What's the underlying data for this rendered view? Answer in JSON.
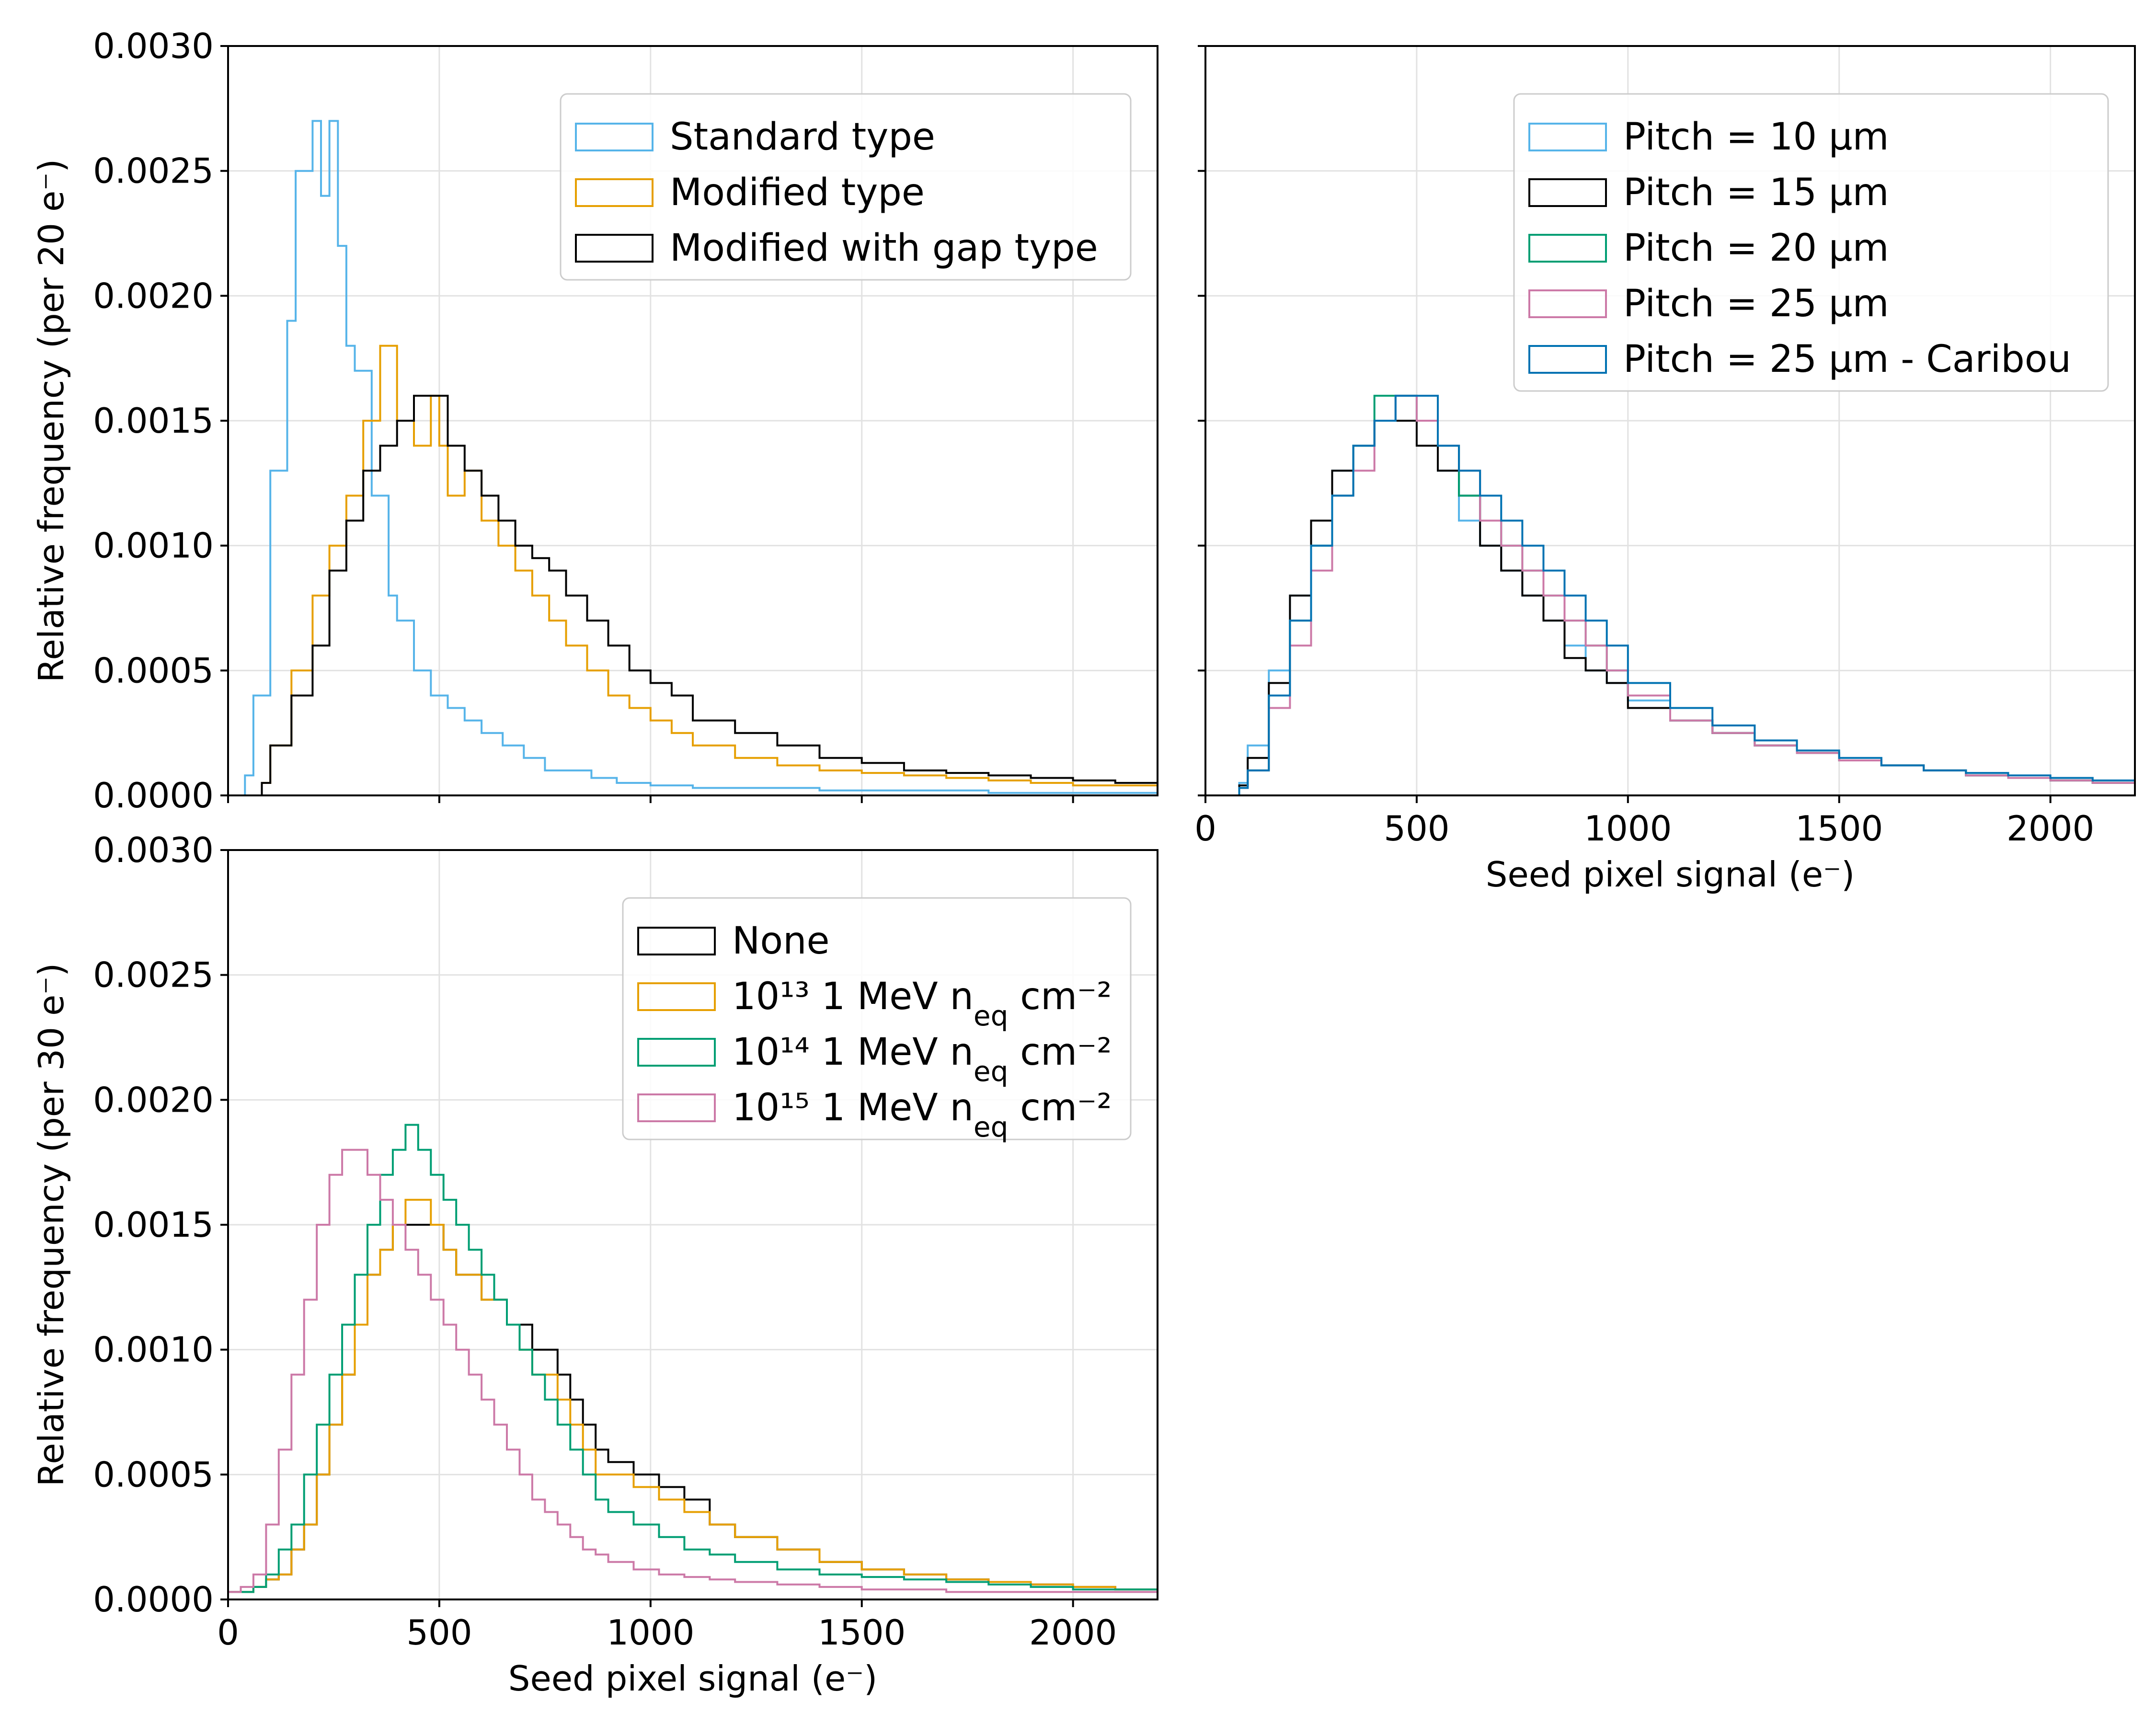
{
  "colors": {
    "sky": "#56B4E9",
    "orange": "#E69F00",
    "black": "#000000",
    "green": "#009E73",
    "pink": "#CC79A7",
    "blue": "#0072B2"
  },
  "chart_data": [
    {
      "type": "line",
      "style": "step-histogram",
      "title": "",
      "xlabel": "",
      "ylabel": "Relative frequency (per 20 e⁻)",
      "xlim": [
        0,
        2200
      ],
      "ylim": [
        0,
        0.003
      ],
      "xticks": [],
      "yticks": [
        "0.0000",
        "0.0005",
        "0.0010",
        "0.0015",
        "0.0020",
        "0.0025",
        "0.0030"
      ],
      "grid": true,
      "legend_placement": "upper right",
      "bin_width": 20,
      "series": [
        {
          "name": "Standard type",
          "color": "sky",
          "x": [
            60,
            100,
            140,
            160,
            200,
            220,
            240,
            260,
            280,
            300,
            320,
            340,
            380,
            400,
            440,
            480,
            520,
            560,
            600,
            650,
            700,
            750,
            800,
            860,
            920,
            1000,
            1100,
            1200,
            1400,
            1600,
            1800,
            2000,
            2200
          ],
          "y": [
            8e-05,
            0.0004,
            0.0013,
            0.0019,
            0.0025,
            0.0027,
            0.0024,
            0.0027,
            0.0022,
            0.0018,
            0.0017,
            0.0017,
            0.0012,
            0.0008,
            0.0007,
            0.0005,
            0.0004,
            0.00035,
            0.0003,
            0.00025,
            0.0002,
            0.00015,
            0.0001,
            0.0001,
            7e-05,
            5e-05,
            4e-05,
            3e-05,
            3e-05,
            2e-05,
            2e-05,
            1e-05,
            1e-05
          ]
        },
        {
          "name": "Modified type",
          "color": "orange",
          "x": [
            100,
            150,
            200,
            240,
            280,
            320,
            360,
            400,
            440,
            480,
            500,
            520,
            560,
            600,
            640,
            680,
            720,
            760,
            800,
            850,
            900,
            950,
            1000,
            1050,
            1100,
            1200,
            1300,
            1400,
            1500,
            1600,
            1700,
            1800,
            1900,
            2000,
            2100,
            2200
          ],
          "y": [
            5e-05,
            0.0002,
            0.0005,
            0.0008,
            0.001,
            0.0012,
            0.0015,
            0.0018,
            0.0015,
            0.0014,
            0.0016,
            0.0014,
            0.0012,
            0.0013,
            0.0011,
            0.001,
            0.0009,
            0.0008,
            0.0007,
            0.0006,
            0.0005,
            0.0004,
            0.00035,
            0.0003,
            0.00025,
            0.0002,
            0.00015,
            0.00012,
            0.0001,
            9e-05,
            8e-05,
            7e-05,
            6e-05,
            5e-05,
            4e-05,
            4e-05
          ]
        },
        {
          "name": "Modified with gap type",
          "color": "black",
          "x": [
            100,
            150,
            200,
            240,
            280,
            320,
            360,
            400,
            440,
            480,
            520,
            560,
            600,
            640,
            680,
            720,
            760,
            800,
            850,
            900,
            950,
            1000,
            1050,
            1100,
            1200,
            1300,
            1400,
            1500,
            1600,
            1700,
            1800,
            1900,
            2000,
            2100,
            2200
          ],
          "y": [
            5e-05,
            0.0002,
            0.0004,
            0.0006,
            0.0009,
            0.0011,
            0.0013,
            0.0014,
            0.0015,
            0.0016,
            0.0016,
            0.0014,
            0.0013,
            0.0012,
            0.0011,
            0.001,
            0.00095,
            0.0009,
            0.0008,
            0.0007,
            0.0006,
            0.0005,
            0.00045,
            0.0004,
            0.0003,
            0.00025,
            0.0002,
            0.00015,
            0.00013,
            0.0001,
            9e-05,
            8e-05,
            7e-05,
            6e-05,
            5e-05
          ]
        }
      ]
    },
    {
      "type": "line",
      "style": "step-histogram",
      "title": "",
      "xlabel": "Seed pixel signal (e⁻)",
      "ylabel": "",
      "xlim": [
        0,
        2200
      ],
      "ylim": [
        0,
        0.003
      ],
      "xticks": [
        "0",
        "500",
        "1000",
        "1500",
        "2000"
      ],
      "yticks": [],
      "grid": true,
      "legend_placement": "upper right",
      "bin_width": 20,
      "series": [
        {
          "name": "Pitch = 10 μm",
          "color": "sky",
          "x": [
            100,
            150,
            200,
            250,
            300,
            350,
            400,
            450,
            500,
            550,
            600,
            650,
            700,
            750,
            800,
            850,
            900,
            950,
            1000,
            1100,
            1200,
            1300,
            1400,
            1500,
            1600,
            1700,
            1800,
            1900,
            2000,
            2100,
            2200
          ],
          "y": [
            5e-05,
            0.0002,
            0.0005,
            0.0008,
            0.0011,
            0.0013,
            0.0014,
            0.0015,
            0.0016,
            0.0015,
            0.0013,
            0.0011,
            0.001,
            0.0009,
            0.0008,
            0.0007,
            0.0006,
            0.0005,
            0.00045,
            0.00038,
            0.0003,
            0.00025,
            0.0002,
            0.00017,
            0.00014,
            0.00012,
            0.0001,
            8e-05,
            7e-05,
            6e-05,
            5e-05
          ]
        },
        {
          "name": "Pitch = 15 μm",
          "color": "black",
          "x": [
            100,
            150,
            200,
            250,
            300,
            350,
            400,
            450,
            500,
            550,
            600,
            650,
            700,
            750,
            800,
            850,
            900,
            950,
            1000,
            1100,
            1200,
            1300,
            1400,
            1500,
            1600,
            1700,
            1800,
            1900,
            2000,
            2100,
            2200
          ],
          "y": [
            4e-05,
            0.00015,
            0.00045,
            0.0008,
            0.0011,
            0.0013,
            0.0014,
            0.0015,
            0.0015,
            0.0014,
            0.0013,
            0.0012,
            0.001,
            0.0009,
            0.0008,
            0.0007,
            0.00055,
            0.0005,
            0.00045,
            0.00035,
            0.0003,
            0.00025,
            0.0002,
            0.00017,
            0.00014,
            0.00012,
            0.0001,
            8e-05,
            7e-05,
            6e-05,
            5e-05
          ]
        },
        {
          "name": "Pitch = 20 μm",
          "color": "green",
          "x": [
            100,
            150,
            200,
            250,
            300,
            350,
            400,
            450,
            500,
            550,
            600,
            650,
            700,
            750,
            800,
            850,
            900,
            950,
            1000,
            1100,
            1200,
            1300,
            1400,
            1500,
            1600,
            1700,
            1800,
            1900,
            2000,
            2100,
            2200
          ],
          "y": [
            3e-05,
            0.0001,
            0.0004,
            0.0007,
            0.001,
            0.0012,
            0.0014,
            0.0016,
            0.0016,
            0.0015,
            0.0014,
            0.0012,
            0.0011,
            0.001,
            0.0009,
            0.0008,
            0.0007,
            0.0006,
            0.0005,
            0.0004,
            0.0003,
            0.00025,
            0.0002,
            0.00017,
            0.00014,
            0.00012,
            0.0001,
            8e-05,
            7e-05,
            6e-05,
            5e-05
          ]
        },
        {
          "name": "Pitch = 25 μm",
          "color": "pink",
          "x": [
            100,
            150,
            200,
            250,
            300,
            350,
            400,
            450,
            500,
            550,
            600,
            650,
            700,
            750,
            800,
            850,
            900,
            950,
            1000,
            1100,
            1200,
            1300,
            1400,
            1500,
            1600,
            1700,
            1800,
            1900,
            2000,
            2100,
            2200
          ],
          "y": [
            3e-05,
            0.0001,
            0.00035,
            0.0006,
            0.0009,
            0.0012,
            0.0013,
            0.0015,
            0.0016,
            0.0015,
            0.0014,
            0.0013,
            0.0011,
            0.001,
            0.0009,
            0.0008,
            0.0007,
            0.0006,
            0.0005,
            0.0004,
            0.0003,
            0.00025,
            0.0002,
            0.00017,
            0.00014,
            0.00012,
            0.0001,
            8e-05,
            7e-05,
            6e-05,
            5e-05
          ]
        },
        {
          "name": "Pitch = 25 μm - Caribou",
          "color": "blue",
          "x": [
            100,
            150,
            200,
            250,
            300,
            350,
            400,
            450,
            500,
            550,
            600,
            650,
            700,
            750,
            800,
            850,
            900,
            950,
            1000,
            1100,
            1200,
            1300,
            1400,
            1500,
            1600,
            1700,
            1800,
            1900,
            2000,
            2100,
            2200
          ],
          "y": [
            3e-05,
            0.0001,
            0.0004,
            0.0007,
            0.001,
            0.0012,
            0.0014,
            0.0015,
            0.0016,
            0.0016,
            0.0014,
            0.0013,
            0.0012,
            0.0011,
            0.001,
            0.0009,
            0.0008,
            0.0007,
            0.0006,
            0.00045,
            0.00035,
            0.00028,
            0.00022,
            0.00018,
            0.00015,
            0.00012,
            0.0001,
            9e-05,
            8e-05,
            7e-05,
            6e-05
          ]
        }
      ]
    },
    {
      "type": "line",
      "style": "step-histogram",
      "title": "",
      "xlabel": "Seed pixel signal (e⁻)",
      "ylabel": "Relative frequency (per 30 e⁻)",
      "xlim": [
        0,
        2200
      ],
      "ylim": [
        0,
        0.003
      ],
      "xticks": [
        "0",
        "500",
        "1000",
        "1500",
        "2000"
      ],
      "yticks": [
        "0.0000",
        "0.0005",
        "0.0010",
        "0.0015",
        "0.0020",
        "0.0025",
        "0.0030"
      ],
      "grid": true,
      "legend_placement": "upper right",
      "bin_width": 30,
      "series": [
        {
          "name": "None",
          "color": "black",
          "x": [
            30,
            60,
            90,
            120,
            150,
            180,
            210,
            240,
            270,
            300,
            330,
            360,
            390,
            420,
            450,
            480,
            510,
            540,
            570,
            600,
            630,
            660,
            690,
            720,
            750,
            780,
            810,
            840,
            870,
            900,
            960,
            1020,
            1080,
            1140,
            1200,
            1300,
            1400,
            1500,
            1600,
            1700,
            1800,
            1900,
            2000,
            2100,
            2200
          ],
          "y": [
            3e-05,
            3e-05,
            5e-05,
            8e-05,
            0.0001,
            0.0002,
            0.0003,
            0.0005,
            0.0007,
            0.0009,
            0.0011,
            0.0013,
            0.0014,
            0.0015,
            0.0015,
            0.0015,
            0.0015,
            0.0014,
            0.0013,
            0.0013,
            0.0012,
            0.0012,
            0.0011,
            0.0011,
            0.001,
            0.001,
            0.0009,
            0.0008,
            0.0007,
            0.0006,
            0.00055,
            0.0005,
            0.00045,
            0.0004,
            0.0003,
            0.00025,
            0.0002,
            0.00015,
            0.00012,
            0.0001,
            8e-05,
            7e-05,
            6e-05,
            5e-05,
            4e-05
          ]
        },
        {
          "name": "10¹³ 1 MeV n_eq cm⁻²",
          "color": "orange",
          "x": [
            30,
            60,
            90,
            120,
            150,
            180,
            210,
            240,
            270,
            300,
            330,
            360,
            390,
            420,
            450,
            480,
            510,
            540,
            570,
            600,
            630,
            660,
            690,
            720,
            750,
            780,
            810,
            840,
            870,
            900,
            960,
            1020,
            1080,
            1140,
            1200,
            1300,
            1400,
            1500,
            1600,
            1700,
            1800,
            1900,
            2000,
            2100,
            2200
          ],
          "y": [
            3e-05,
            3e-05,
            5e-05,
            8e-05,
            0.0001,
            0.0002,
            0.0003,
            0.0005,
            0.0007,
            0.0009,
            0.0011,
            0.0013,
            0.0014,
            0.0015,
            0.0016,
            0.0016,
            0.0015,
            0.0014,
            0.0013,
            0.0013,
            0.0012,
            0.0012,
            0.0011,
            0.001,
            0.0009,
            0.0009,
            0.0008,
            0.0007,
            0.0006,
            0.0005,
            0.0005,
            0.00045,
            0.0004,
            0.00035,
            0.0003,
            0.00025,
            0.0002,
            0.00015,
            0.00012,
            0.0001,
            8e-05,
            7e-05,
            6e-05,
            5e-05,
            4e-05
          ]
        },
        {
          "name": "10¹⁴ 1 MeV n_eq cm⁻²",
          "color": "green",
          "x": [
            30,
            60,
            90,
            120,
            150,
            180,
            210,
            240,
            270,
            300,
            330,
            360,
            390,
            420,
            450,
            480,
            510,
            540,
            570,
            600,
            630,
            660,
            690,
            720,
            750,
            780,
            810,
            840,
            870,
            900,
            960,
            1020,
            1080,
            1140,
            1200,
            1300,
            1400,
            1500,
            1600,
            1700,
            1800,
            1900,
            2000,
            2100,
            2200
          ],
          "y": [
            3e-05,
            3e-05,
            5e-05,
            0.0001,
            0.0002,
            0.0003,
            0.0005,
            0.0007,
            0.0009,
            0.0011,
            0.0013,
            0.0015,
            0.0017,
            0.0018,
            0.0019,
            0.0018,
            0.0017,
            0.0016,
            0.0015,
            0.0014,
            0.0013,
            0.0012,
            0.0011,
            0.001,
            0.0009,
            0.0008,
            0.0007,
            0.0006,
            0.0005,
            0.0004,
            0.00035,
            0.0003,
            0.00025,
            0.0002,
            0.00018,
            0.00015,
            0.00012,
            0.0001,
            9e-05,
            8e-05,
            7e-05,
            6e-05,
            5e-05,
            4e-05,
            4e-05
          ]
        },
        {
          "name": "10¹⁵ 1 MeV n_eq cm⁻²",
          "color": "pink",
          "x": [
            30,
            60,
            90,
            120,
            150,
            180,
            210,
            240,
            270,
            300,
            330,
            360,
            390,
            420,
            450,
            480,
            510,
            540,
            570,
            600,
            630,
            660,
            690,
            720,
            750,
            780,
            810,
            840,
            870,
            900,
            960,
            1020,
            1080,
            1140,
            1200,
            1300,
            1400,
            1500,
            1600,
            1700,
            1800,
            1900,
            2000,
            2100,
            2200
          ],
          "y": [
            3e-05,
            5e-05,
            0.0001,
            0.0003,
            0.0006,
            0.0009,
            0.0012,
            0.0015,
            0.0017,
            0.0018,
            0.0018,
            0.0017,
            0.0016,
            0.0015,
            0.0014,
            0.0013,
            0.0012,
            0.0011,
            0.001,
            0.0009,
            0.0008,
            0.0007,
            0.0006,
            0.0005,
            0.0004,
            0.00035,
            0.0003,
            0.00025,
            0.0002,
            0.00018,
            0.00015,
            0.00012,
            0.0001,
            9e-05,
            8e-05,
            7e-05,
            6e-05,
            5e-05,
            4e-05,
            4e-05,
            3e-05,
            3e-05,
            3e-05,
            3e-05,
            3e-05
          ]
        }
      ]
    }
  ]
}
